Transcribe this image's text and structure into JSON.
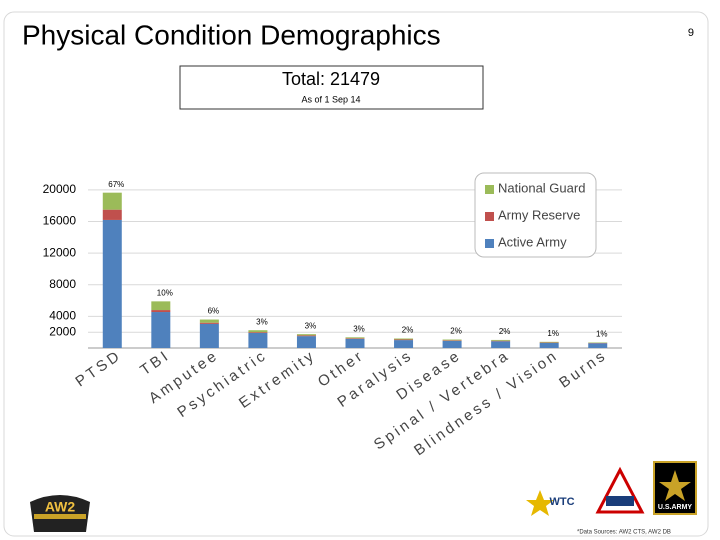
{
  "header": {
    "title": "Physical Condition Demographics",
    "page_number": "9"
  },
  "total_box": {
    "total": "Total: 21479",
    "as_of": "As of 1 Sep 14"
  },
  "chart_data": {
    "type": "stacked_bar",
    "categories": [
      "PTSD",
      "TBI",
      "Amputee",
      "Psychiatric",
      "Extremity",
      "Other",
      "Paralysis",
      "Disease",
      "Spinal / Vertebra",
      "Blindness / Vision",
      "Burns"
    ],
    "series": [
      {
        "name": "Active Army",
        "color": "#4f81bd",
        "values": [
          16200,
          4550,
          3050,
          1900,
          1500,
          1150,
          1000,
          900,
          850,
          650,
          600
        ]
      },
      {
        "name": "Army Reserve",
        "color": "#c0504d",
        "values": [
          1300,
          250,
          150,
          100,
          100,
          80,
          80,
          70,
          70,
          50,
          40
        ]
      },
      {
        "name": "National Guard",
        "color": "#9bbb59",
        "values": [
          2150,
          1100,
          400,
          250,
          150,
          120,
          120,
          100,
          100,
          80,
          60
        ]
      }
    ],
    "percent_labels": [
      "67%",
      "10%",
      "6%",
      "3%",
      "3%",
      "3%",
      "2%",
      "2%",
      "2%",
      "1%",
      "1%"
    ],
    "ylim": [
      0,
      21000
    ],
    "yticks": [
      2000,
      4000,
      8000,
      12000,
      16000,
      20000
    ],
    "grid": true,
    "legend": "upper right"
  },
  "footer": {
    "source": "*Data Sources: AW2 CTS, AW2 DB",
    "aw2_logo": "AW2",
    "wtc_logo": "WTC",
    "army_logo": "U.S.ARMY"
  }
}
